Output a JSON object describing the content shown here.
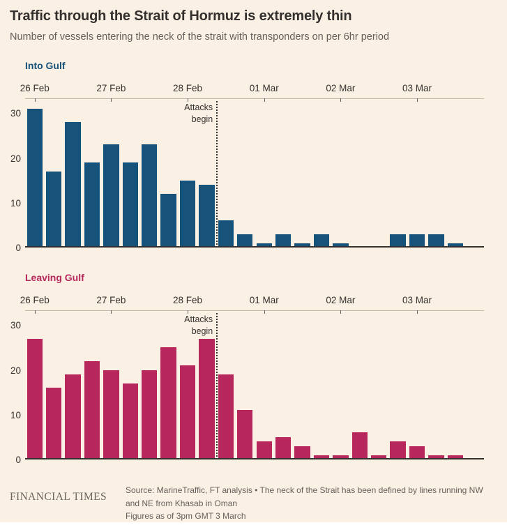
{
  "header": {
    "title": "Traffic through the Strait of Hormuz is extremely thin",
    "subtitle": "Number of vessels entering the neck of the strait with transponders on per 6hr period"
  },
  "chart_data": [
    {
      "type": "bar",
      "title": "Into Gulf",
      "color": "#17527B",
      "x_tick_labels": [
        "26 Feb",
        "27 Feb",
        "28 Feb",
        "01 Mar",
        "02 Mar",
        "03 Mar"
      ],
      "y_tick_labels": [
        0,
        10,
        20,
        30
      ],
      "ylim": [
        0,
        33
      ],
      "bars_per_day": 4,
      "values": [
        31,
        17,
        28,
        19,
        23,
        19,
        23,
        12,
        15,
        14,
        6,
        3,
        1,
        3,
        1,
        3,
        1,
        0,
        0,
        3,
        3,
        3,
        1,
        0
      ],
      "annotation": {
        "line1": "Attacks",
        "line2": "begin",
        "x_slot": 10
      }
    },
    {
      "type": "bar",
      "title": "Leaving Gulf",
      "color": "#B8275C",
      "x_tick_labels": [
        "26 Feb",
        "27 Feb",
        "28 Feb",
        "01 Mar",
        "02 Mar",
        "03 Mar"
      ],
      "y_tick_labels": [
        0,
        10,
        20,
        30
      ],
      "ylim": [
        0,
        33
      ],
      "bars_per_day": 4,
      "values": [
        27,
        16,
        19,
        22,
        20,
        17,
        20,
        25,
        21,
        27,
        19,
        11,
        4,
        5,
        3,
        1,
        1,
        6,
        1,
        4,
        3,
        1,
        1,
        0
      ],
      "annotation": {
        "line1": "Attacks",
        "line2": "begin",
        "x_slot": 10
      }
    }
  ],
  "footer": {
    "brand": "FINANCIAL TIMES",
    "source_line1": "Source: MarineTraffic, FT analysis • The neck of the Strait has been defined by lines running NW",
    "source_line2": "and NE from Khasab in Oman",
    "source_line3": "Figures as of 3pm GMT 3 March"
  }
}
